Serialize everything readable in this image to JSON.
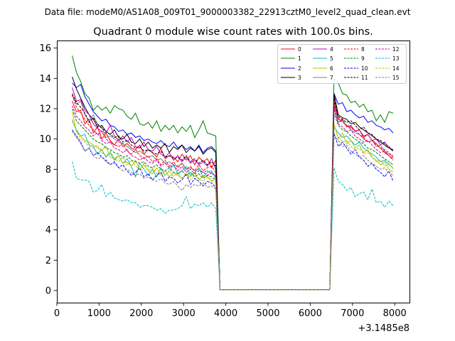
{
  "chart_data": {
    "type": "line",
    "suptitle": "Data file: modeM0/AS1A08_009T01_9000003382_22913cztM0_level2_quad_clean.evt",
    "title": "Quadrant 0 module wise count rates with 100.0s bins.",
    "xlabel": "",
    "ylabel": "",
    "x_offset_label": "+3.1485e8",
    "xlim": [
      0,
      8350
    ],
    "ylim": [
      -0.8,
      16.5
    ],
    "x_ticks": [
      0,
      1000,
      2000,
      3000,
      4000,
      5000,
      6000,
      7000,
      8000
    ],
    "x_tick_labels": [
      "0",
      "1000",
      "2000",
      "3000",
      "4000",
      "5000",
      "6000",
      "7000",
      "8000"
    ],
    "y_ticks": [
      0,
      2,
      4,
      6,
      8,
      10,
      12,
      14,
      16
    ],
    "y_tick_labels": [
      "0",
      "2",
      "4",
      "6",
      "8",
      "10",
      "12",
      "14",
      "16"
    ],
    "legend_position": "top-right",
    "gap_value": 0.05,
    "segments": [
      {
        "x_start": 363,
        "x_end": 3763,
        "step": 100
      },
      {
        "x_start": 6563,
        "x_end": 7963,
        "step": 100
      }
    ],
    "series": [
      {
        "name": "0",
        "color": "#ff0000",
        "dash": "solid",
        "seg1": [
          12.5,
          11.8,
          11.9,
          11.0,
          11.3,
          10.4,
          10.8,
          10.0,
          10.4,
          9.9,
          9.6,
          10.0,
          9.5,
          9.7,
          9.4,
          9.3,
          9.6,
          9.0,
          9.3,
          9.1,
          8.8,
          9.4,
          8.7,
          8.9,
          8.8,
          8.5,
          9.0,
          8.6,
          8.9,
          8.3,
          8.8,
          8.5,
          8.7,
          8.1,
          8.6
        ],
        "seg2": [
          12.2,
          11.1,
          11.3,
          10.8,
          10.9,
          10.5,
          10.6,
          10.1,
          10.3,
          9.9,
          9.7,
          9.4,
          9.1,
          8.9,
          8.7
        ]
      },
      {
        "name": "1",
        "color": "#008000",
        "dash": "solid",
        "seg1": [
          15.5,
          14.4,
          13.8,
          13.0,
          12.7,
          11.9,
          12.2,
          11.9,
          12.1,
          11.7,
          12.2,
          12.0,
          11.9,
          11.5,
          11.3,
          11.7,
          11.0,
          10.9,
          11.1,
          10.7,
          11.2,
          10.5,
          10.9,
          10.6,
          10.9,
          10.4,
          10.8,
          10.5,
          10.9,
          10.1,
          10.6,
          11.2,
          10.4,
          10.3,
          10.2
        ],
        "seg2": [
          14.0,
          13.7,
          13.0,
          12.9,
          12.4,
          12.5,
          12.1,
          12.3,
          11.8,
          11.9,
          11.2,
          11.6,
          11.1,
          11.8,
          11.7
        ]
      },
      {
        "name": "2",
        "color": "#0000ff",
        "dash": "solid",
        "seg1": [
          13.7,
          13.4,
          13.6,
          12.8,
          12.3,
          11.8,
          11.5,
          11.2,
          11.3,
          10.9,
          10.8,
          10.5,
          10.6,
          10.3,
          10.4,
          10.1,
          10.2,
          9.9,
          10.0,
          9.8,
          9.7,
          9.9,
          9.6,
          9.5,
          9.8,
          9.4,
          9.6,
          9.3,
          9.5,
          9.2,
          9.6,
          9.1,
          9.4,
          9.5,
          9.2
        ],
        "seg2": [
          13.0,
          12.3,
          12.4,
          11.8,
          11.9,
          11.6,
          11.4,
          11.5,
          11.1,
          11.2,
          10.9,
          10.8,
          10.6,
          10.7,
          10.4
        ]
      },
      {
        "name": "3",
        "color": "#000000",
        "dash": "solid",
        "seg1": [
          14.1,
          13.3,
          12.7,
          12.1,
          11.6,
          11.3,
          10.8,
          10.9,
          10.5,
          10.3,
          10.6,
          10.1,
          10.0,
          10.3,
          9.8,
          9.7,
          10.0,
          9.5,
          9.8,
          9.4,
          9.6,
          9.4,
          9.7,
          9.1,
          9.5,
          9.3,
          9.6,
          9.1,
          9.4,
          9.2,
          9.5,
          9.0,
          9.3,
          9.4,
          9.1
        ],
        "seg2": [
          13.0,
          11.6,
          11.4,
          11.3,
          11.0,
          11.1,
          10.8,
          10.6,
          10.4,
          10.2,
          10.0,
          9.8,
          9.6,
          9.4,
          9.3
        ]
      },
      {
        "name": "4",
        "color": "#bf00bf",
        "dash": "solid",
        "seg1": [
          13.4,
          12.5,
          12.6,
          11.9,
          11.6,
          11.0,
          10.7,
          10.5,
          10.4,
          10.9,
          10.2,
          9.9,
          10.2,
          9.8,
          10.1,
          9.5,
          9.4,
          9.8,
          9.3,
          9.2,
          9.5,
          9.0,
          8.8,
          9.1,
          8.6,
          8.9,
          8.5,
          8.8,
          8.4,
          8.6,
          8.3,
          8.5,
          8.2,
          8.7,
          8.0
        ],
        "seg2": [
          12.6,
          11.3,
          11.2,
          10.9,
          10.8,
          10.5,
          10.6,
          10.2,
          10.3,
          9.9,
          10.0,
          9.6,
          9.8,
          9.4,
          9.2
        ]
      },
      {
        "name": "5",
        "color": "#00bfbf",
        "dash": "solid",
        "seg1": [
          11.2,
          10.6,
          10.2,
          10.3,
          9.6,
          9.5,
          9.0,
          9.3,
          8.8,
          9.1,
          8.6,
          8.9,
          8.4,
          8.7,
          8.2,
          7.5,
          8.4,
          8.0,
          7.6,
          8.0,
          7.5,
          8.1,
          7.6,
          7.9,
          8.3,
          7.7,
          7.9,
          8.2,
          7.6,
          7.8,
          8.1,
          7.5,
          7.8,
          7.9,
          7.4
        ],
        "seg2": [
          10.8,
          10.4,
          10.1,
          10.2,
          9.9,
          9.6,
          9.8,
          9.4,
          9.2,
          9.0,
          8.8,
          8.5,
          8.6,
          8.3,
          8.1
        ]
      },
      {
        "name": "6",
        "color": "#bfbf00",
        "dash": "solid",
        "seg1": [
          11.8,
          10.5,
          10.2,
          9.9,
          9.8,
          9.6,
          9.4,
          9.3,
          9.5,
          8.8,
          8.7,
          8.9,
          8.4,
          8.5,
          8.2,
          8.6,
          8.0,
          8.3,
          7.9,
          7.7,
          8.1,
          7.6,
          7.9,
          7.5,
          7.8,
          7.6,
          7.4,
          7.7,
          7.5,
          7.8,
          7.3,
          7.6,
          7.5,
          7.2,
          7.4
        ],
        "seg2": [
          11.0,
          10.0,
          10.4,
          9.7,
          9.9,
          9.4,
          9.6,
          9.1,
          9.3,
          8.8,
          8.6,
          8.3,
          8.5,
          8.0,
          7.8
        ]
      },
      {
        "name": "7",
        "color": "#808080",
        "dash": "solid",
        "seg1": [
          12.9,
          12.3,
          12.5,
          11.6,
          11.2,
          11.6,
          10.9,
          10.8,
          10.1,
          10.2,
          10.0,
          9.8,
          9.7,
          9.5,
          9.3,
          9.1,
          9.2,
          9.0,
          8.8,
          8.9,
          8.6,
          8.7,
          8.4,
          8.5,
          8.3,
          8.2,
          8.4,
          8.0,
          8.1,
          7.9,
          8.0,
          7.8,
          7.9,
          7.7,
          7.6
        ],
        "seg2": [
          12.4,
          11.1,
          11.2,
          10.9,
          10.6,
          10.4,
          10.3,
          10.0,
          9.8,
          9.9,
          9.5,
          9.6,
          9.2,
          9.0,
          8.9
        ]
      },
      {
        "name": "8",
        "color": "#ff0000",
        "dash": "dashed",
        "seg1": [
          12.9,
          12.1,
          11.7,
          11.3,
          10.9,
          10.6,
          10.3,
          10.5,
          10.0,
          9.8,
          9.6,
          9.5,
          9.7,
          9.2,
          9.0,
          9.3,
          8.9,
          8.7,
          8.9,
          8.5,
          8.7,
          8.3,
          8.6,
          8.2,
          8.5,
          8.1,
          8.4,
          8.0,
          8.2,
          7.9,
          8.3,
          7.9,
          8.1,
          8.2,
          7.8
        ],
        "seg2": [
          12.5,
          11.4,
          11.1,
          10.9,
          10.7,
          10.6,
          10.3,
          10.1,
          9.8,
          9.9,
          9.6,
          9.4,
          9.3,
          9.1,
          8.8
        ]
      },
      {
        "name": "9",
        "color": "#008000",
        "dash": "dashed",
        "seg1": [
          12.0,
          11.2,
          10.9,
          10.6,
          10.3,
          10.0,
          9.8,
          9.7,
          9.4,
          9.3,
          9.1,
          9.0,
          8.8,
          8.9,
          8.6,
          8.5,
          8.4,
          8.5,
          8.2,
          8.1,
          8.3,
          8.0,
          7.9,
          8.1,
          7.8,
          7.7,
          7.9,
          7.6,
          7.8,
          7.5,
          7.7,
          7.4,
          7.6,
          7.5,
          7.3
        ],
        "seg2": [
          11.7,
          10.9,
          10.6,
          10.5,
          10.2,
          10.0,
          9.8,
          9.7,
          9.4,
          9.3,
          9.1,
          8.9,
          8.7,
          8.5,
          8.3
        ]
      },
      {
        "name": "10",
        "color": "#0000ff",
        "dash": "dashed",
        "seg1": [
          10.6,
          10.2,
          9.8,
          9.2,
          9.4,
          8.9,
          9.1,
          8.8,
          8.6,
          8.3,
          8.5,
          8.1,
          8.3,
          7.9,
          7.6,
          7.8,
          8.1,
          7.5,
          7.7,
          7.3,
          7.6,
          7.8,
          7.2,
          7.5,
          7.4,
          7.1,
          7.3,
          7.7,
          7.0,
          7.4,
          7.2,
          6.9,
          7.2,
          7.1,
          6.8
        ],
        "seg2": [
          10.4,
          9.5,
          9.8,
          9.4,
          9.0,
          9.3,
          8.8,
          8.6,
          8.2,
          8.4,
          8.0,
          7.8,
          7.5,
          7.9,
          7.2
        ]
      },
      {
        "name": "11",
        "color": "#000000",
        "dash": "dashed",
        "seg1": [
          13.0,
          12.4,
          12.1,
          11.7,
          11.1,
          11.4,
          11.0,
          10.7,
          10.5,
          10.3,
          10.1,
          10.2,
          9.8,
          9.9,
          9.6,
          9.4,
          9.5,
          9.2,
          9.3,
          9.1,
          9.0,
          9.2,
          8.8,
          8.9,
          8.7,
          8.8,
          8.6,
          8.9,
          8.5,
          8.7,
          8.4,
          8.6,
          8.3,
          8.5,
          8.2
        ],
        "seg2": [
          12.7,
          11.5,
          11.3,
          11.1,
          11.2,
          10.9,
          10.6,
          10.8,
          10.4,
          10.3,
          10.0,
          9.9,
          9.7,
          9.5,
          9.2
        ]
      },
      {
        "name": "12",
        "color": "#bf00bf",
        "dash": "dashed",
        "seg1": [
          12.2,
          11.5,
          11.2,
          10.8,
          10.6,
          10.2,
          10.4,
          9.9,
          9.7,
          9.8,
          9.4,
          9.3,
          9.1,
          9.3,
          8.9,
          8.8,
          8.6,
          8.8,
          8.5,
          8.4,
          8.6,
          8.2,
          8.4,
          8.1,
          8.3,
          7.9,
          8.2,
          7.8,
          8.0,
          7.7,
          7.9,
          7.8,
          7.6,
          7.8,
          7.5
        ],
        "seg2": [
          12.0,
          11.0,
          10.8,
          10.5,
          10.6,
          10.2,
          10.0,
          9.8,
          9.9,
          9.6,
          9.3,
          9.1,
          9.2,
          8.9,
          8.6
        ]
      },
      {
        "name": "13",
        "color": "#00bfbf",
        "dash": "dashed",
        "seg1": [
          8.5,
          7.4,
          7.3,
          7.3,
          7.2,
          6.5,
          6.6,
          7.0,
          6.2,
          6.5,
          6.1,
          6.0,
          5.9,
          6.0,
          5.8,
          5.8,
          5.5,
          5.6,
          5.6,
          5.5,
          5.3,
          5.4,
          5.1,
          5.3,
          5.3,
          5.4,
          5.6,
          6.2,
          5.4,
          5.7,
          5.6,
          5.8,
          5.5,
          5.8,
          5.4
        ],
        "seg2": [
          8.1,
          7.2,
          7.0,
          6.6,
          6.8,
          6.2,
          6.4,
          6.5,
          6.0,
          6.7,
          5.8,
          5.9,
          5.5,
          5.9,
          5.6
        ]
      },
      {
        "name": "14",
        "color": "#bfbf00",
        "dash": "dashed",
        "seg1": [
          11.3,
          10.5,
          10.0,
          9.8,
          9.5,
          9.4,
          9.6,
          9.1,
          8.9,
          9.2,
          8.7,
          8.5,
          8.8,
          8.3,
          8.6,
          8.2,
          8.0,
          8.4,
          7.9,
          8.1,
          7.7,
          8.0,
          7.6,
          7.9,
          7.5,
          7.8,
          7.4,
          7.7,
          7.3,
          7.6,
          7.4,
          7.2,
          7.5,
          7.3,
          7.1
        ],
        "seg2": [
          10.9,
          10.1,
          9.8,
          9.9,
          9.5,
          9.3,
          9.4,
          9.0,
          9.1,
          8.8,
          8.5,
          8.6,
          8.2,
          8.4,
          8.0
        ]
      },
      {
        "name": "15",
        "color": "#808080",
        "dash": "dashed",
        "seg1": [
          10.5,
          10.1,
          9.7,
          9.2,
          9.4,
          8.9,
          8.7,
          8.8,
          8.5,
          8.3,
          8.4,
          8.1,
          7.9,
          8.0,
          7.8,
          7.6,
          7.7,
          7.4,
          7.5,
          7.3,
          7.2,
          7.4,
          7.1,
          7.0,
          7.2,
          6.9,
          6.6,
          7.0,
          6.8,
          7.0,
          6.9,
          7.1,
          6.8,
          6.9,
          6.7
        ],
        "seg2": [
          10.2,
          9.9,
          9.5,
          9.6,
          9.2,
          9.0,
          8.8,
          8.9,
          8.6,
          8.4,
          8.2,
          8.0,
          8.1,
          7.8,
          7.6
        ]
      }
    ]
  }
}
